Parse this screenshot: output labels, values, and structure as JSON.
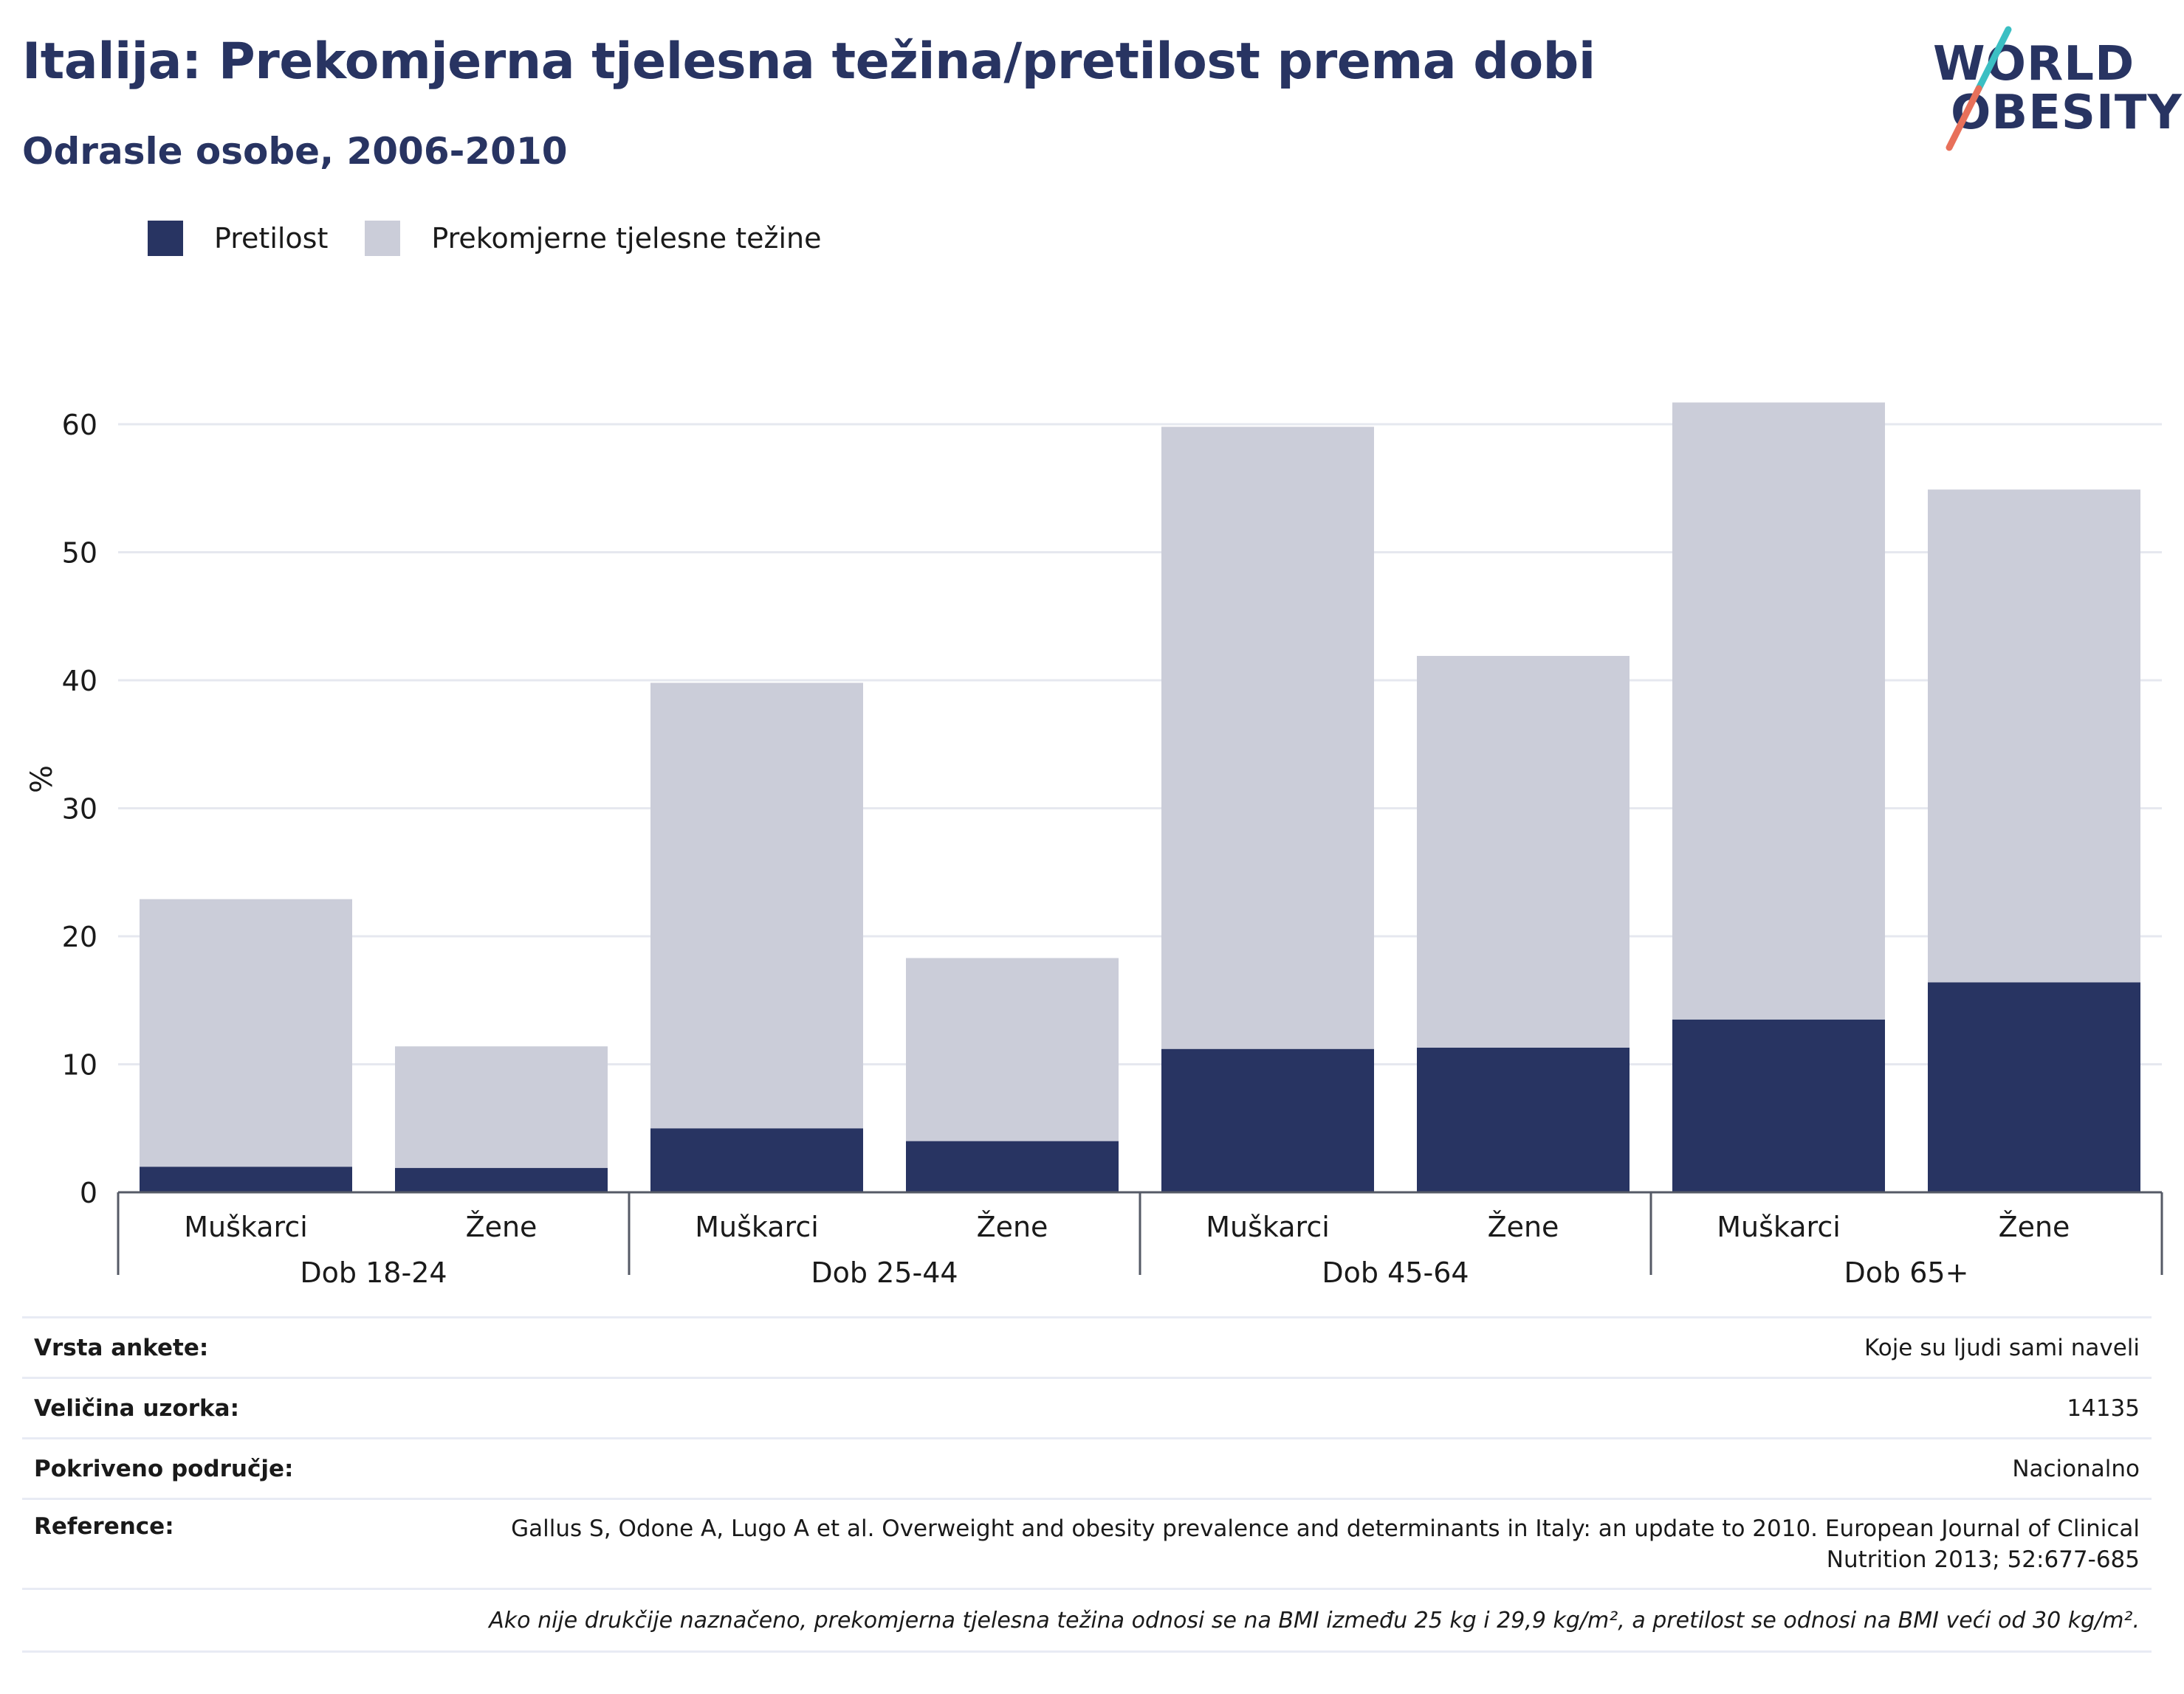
{
  "header": {
    "title": "Italija: Prekomjerna tjelesna težina/pretilost prema dobi",
    "subtitle": "Odrasle osobe, 2006-2010"
  },
  "logo": {
    "line1": "WORLD",
    "line2": "OBESITY",
    "accent_colors": [
      "#3bbfc3",
      "#e8705a"
    ]
  },
  "legend": [
    {
      "label": "Pretilost",
      "color": "#283462"
    },
    {
      "label": "Prekomjerne tjelesne težine",
      "color": "#cbcdd9"
    }
  ],
  "chart_data": {
    "type": "bar",
    "stacked": true,
    "ylabel": "%",
    "ylim": [
      0,
      70
    ],
    "yticks": [
      0,
      10,
      20,
      30,
      40,
      50,
      60
    ],
    "grid": true,
    "legend_position": "top-left",
    "categories": [
      "Muškarci",
      "Žene",
      "Muškarci",
      "Žene",
      "Muškarci",
      "Žene",
      "Muškarci",
      "Žene"
    ],
    "groups": [
      "Dob 18-24",
      "Dob 25-44",
      "Dob 45-64",
      "Dob 65+"
    ],
    "series": [
      {
        "name": "Pretilost",
        "color": "#283462",
        "values": [
          2.0,
          1.9,
          5.0,
          4.0,
          11.2,
          11.3,
          13.5,
          16.4
        ]
      },
      {
        "name": "Prekomjerne tjelesne težine",
        "color": "#cbcdd9",
        "values": [
          20.9,
          9.5,
          34.8,
          14.3,
          48.6,
          30.6,
          48.2,
          38.5
        ]
      }
    ]
  },
  "meta": {
    "rows": [
      {
        "label": "Vrsta ankete:",
        "value": "Koje su ljudi sami naveli"
      },
      {
        "label": "Veličina uzorka:",
        "value": "14135"
      },
      {
        "label": "Pokriveno područje:",
        "value": "Nacionalno"
      },
      {
        "label": "Reference:",
        "value": "Gallus S, Odone A, Lugo A et al. Overweight and obesity prevalence and determinants in Italy: an update to 2010. European Journal of Clinical Nutrition 2013; 52:677-685"
      }
    ],
    "note": "Ako nije drukčije naznačeno, prekomjerna tjelesna težina odnosi se na BMI između 25 kg i 29,9 kg/m², a pretilost se odnosi na BMI veći od 30 kg/m²."
  }
}
